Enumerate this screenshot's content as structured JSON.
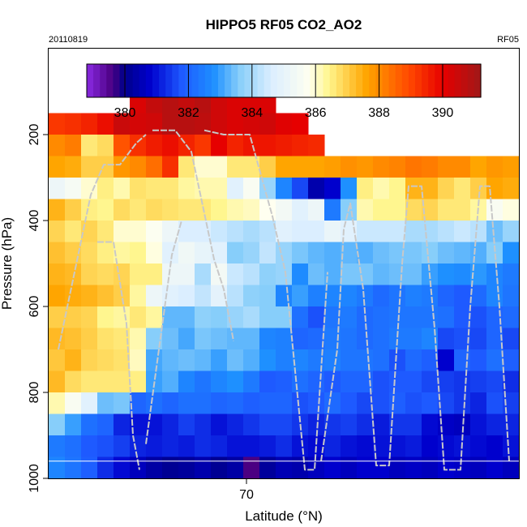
{
  "header": {
    "title": "HIPPO5 RF05 CO2_AO2",
    "date": "20110819",
    "flight": "RF05"
  },
  "chart_data": {
    "type": "heatmap",
    "title": "HIPPO5 RF05 CO2_AO2",
    "xlabel": "Latitude (°N)",
    "ylabel": "Pressure (hPa)",
    "x_ticks": [
      70
    ],
    "y_ticks": [
      200,
      400,
      600,
      800,
      1000
    ],
    "x_tick_labels": [
      "70"
    ],
    "y_tick_labels": [
      "200",
      "400",
      "600",
      "800",
      "1000"
    ],
    "xlim": [
      63.9,
      78.4
    ],
    "ylim": [
      1000,
      0
    ],
    "y_reversed": true,
    "grid": false,
    "colorbar": {
      "placement": "top-inset",
      "range": [
        378.8,
        391.2
      ],
      "ticks": [
        380,
        382,
        384,
        386,
        388,
        390
      ],
      "tick_labels": [
        "380",
        "382",
        "384",
        "386",
        "388",
        "390"
      ],
      "stops": [
        {
          "v": 378.8,
          "c": "#8a2be2"
        },
        {
          "v": 379.6,
          "c": "#4b0082"
        },
        {
          "v": 380.0,
          "c": "#00008b"
        },
        {
          "v": 380.8,
          "c": "#0000cd"
        },
        {
          "v": 381.8,
          "c": "#1e5aff"
        },
        {
          "v": 382.8,
          "c": "#1e90ff"
        },
        {
          "v": 383.6,
          "c": "#87cefa"
        },
        {
          "v": 384.6,
          "c": "#dbeeff"
        },
        {
          "v": 385.8,
          "c": "#fffff0"
        },
        {
          "v": 386.4,
          "c": "#fff68f"
        },
        {
          "v": 387.6,
          "c": "#ffa500"
        },
        {
          "v": 389.0,
          "c": "#ff4500"
        },
        {
          "v": 390.0,
          "c": "#e60000"
        },
        {
          "v": 391.2,
          "c": "#a01818"
        }
      ]
    },
    "lat_bins": [
      63.9,
      64.4,
      64.9,
      65.4,
      65.9,
      66.4,
      66.9,
      67.4,
      67.9,
      68.4,
      68.9,
      69.4,
      69.9,
      70.4,
      70.9,
      71.4,
      71.9,
      72.4,
      72.9,
      73.4,
      73.9,
      74.4,
      74.9,
      75.4,
      75.9,
      76.4,
      76.9,
      77.4,
      77.9,
      78.4
    ],
    "pressure_bins": [
      100,
      150,
      200,
      250,
      300,
      350,
      400,
      450,
      500,
      550,
      600,
      650,
      700,
      750,
      800,
      850,
      900,
      950,
      1000
    ],
    "co2_ppm": [
      [
        null,
        null,
        null,
        null,
        null,
        390.2,
        390.6,
        390.8,
        390.6,
        390.8,
        390.4,
        390.2,
        390.2,
        390.2,
        null,
        null,
        null,
        null,
        null,
        null,
        null,
        null,
        null,
        null,
        null,
        null,
        null,
        null,
        null
      ],
      [
        389.2,
        389.3,
        389.5,
        389.8,
        390.5,
        390.3,
        390.4,
        390.8,
        390.8,
        390.7,
        390.4,
        390.2,
        390.3,
        390.4,
        390.1,
        390.0,
        null,
        null,
        null,
        null,
        null,
        null,
        null,
        null,
        null,
        null,
        null,
        null,
        null
      ],
      [
        388.0,
        388.2,
        386.6,
        386.8,
        388.8,
        389.3,
        389.6,
        389.8,
        389.5,
        389.2,
        390.0,
        389.5,
        389.7,
        389.7,
        389.6,
        389.5,
        389.4,
        null,
        null,
        null,
        null,
        null,
        null,
        null,
        null,
        null,
        null,
        null,
        null
      ],
      [
        387.6,
        387.5,
        387.0,
        387.0,
        387.8,
        388.0,
        388.4,
        389.3,
        386.6,
        386.0,
        386.0,
        386.6,
        386.6,
        387.0,
        387.6,
        387.6,
        387.6,
        387.7,
        387.9,
        387.8,
        388.0,
        388.1,
        388.3,
        388.2,
        388.0,
        388.0,
        387.6,
        387.8,
        387.7
      ],
      [
        385.2,
        385.5,
        386.0,
        386.5,
        386.2,
        386.7,
        386.6,
        386.6,
        386.3,
        386.2,
        386.2,
        384.8,
        385.6,
        383.8,
        382.6,
        381.6,
        380.4,
        380.8,
        382.8,
        386.5,
        386.2,
        386.4,
        387.4,
        387.4,
        386.9,
        386.6,
        387.0,
        387.6,
        387.5
      ],
      [
        387.4,
        387.0,
        386.5,
        386.4,
        386.8,
        386.6,
        386.8,
        386.7,
        386.6,
        386.6,
        386.4,
        386.2,
        386.1,
        385.8,
        385.4,
        384.8,
        385.2,
        382.4,
        383.6,
        386.2,
        386.4,
        386.4,
        386.8,
        386.9,
        386.6,
        386.6,
        386.3,
        385.6,
        385.9
      ],
      [
        386.9,
        386.6,
        386.9,
        386.6,
        386.0,
        386.0,
        385.7,
        385.2,
        384.6,
        384.6,
        384.4,
        384.2,
        384.0,
        384.2,
        384.8,
        384.6,
        384.6,
        385.1,
        384.8,
        384.4,
        384.4,
        384.4,
        384.0,
        384.0,
        384.2,
        384.4,
        384.2,
        383.4,
        383.8
      ],
      [
        387.2,
        387.0,
        386.8,
        386.5,
        386.3,
        386.4,
        385.9,
        384.8,
        385.3,
        385.0,
        384.8,
        383.6,
        383.8,
        384.3,
        383.8,
        383.5,
        383.3,
        383.2,
        383.3,
        383.2,
        383.4,
        383.5,
        383.5,
        383.6,
        383.4,
        383.3,
        383.2,
        383.6,
        382.8
      ],
      [
        387.4,
        387.3,
        386.9,
        386.8,
        386.9,
        386.5,
        386.5,
        385.2,
        385.2,
        384.0,
        385.4,
        384.4,
        384.2,
        383.7,
        383.8,
        382.7,
        383.4,
        383.2,
        383.5,
        383.5,
        383.3,
        383.4,
        383.4,
        383.0,
        382.8,
        382.7,
        382.9,
        382.6,
        382.4
      ],
      [
        387.6,
        387.5,
        387.4,
        387.2,
        387.0,
        386.3,
        385.2,
        384.8,
        384.6,
        384.3,
        384.9,
        384.2,
        383.7,
        383.6,
        382.6,
        383.0,
        382.5,
        382.6,
        382.6,
        382.4,
        382.1,
        382.3,
        382.5,
        382.4,
        382.0,
        381.8,
        382.1,
        382.6,
        382.3
      ],
      [
        387.0,
        387.0,
        386.9,
        386.4,
        386.3,
        386.6,
        386.3,
        383.3,
        383.3,
        383.7,
        383.6,
        383.8,
        384.0,
        383.6,
        383.6,
        382.2,
        381.7,
        382.3,
        382.4,
        382.1,
        382.2,
        382.3,
        382.3,
        382.3,
        382.2,
        381.8,
        381.7,
        382.0,
        382.1
      ],
      [
        387.3,
        387.2,
        387.0,
        386.7,
        386.6,
        386.2,
        383.6,
        383.4,
        383.1,
        383.5,
        383.4,
        383.3,
        383.3,
        382.6,
        382.5,
        382.0,
        382.1,
        382.4,
        382.3,
        382.1,
        382.2,
        382.4,
        382.4,
        382.6,
        381.6,
        381.7,
        381.6,
        382.0,
        381.6
      ],
      [
        387.1,
        387.4,
        386.9,
        386.8,
        386.7,
        386.1,
        383.1,
        383.3,
        383.4,
        383.3,
        383.0,
        383.4,
        383.2,
        382.8,
        382.5,
        382.6,
        382.4,
        382.5,
        382.3,
        382.3,
        382.2,
        381.7,
        382.1,
        381.9,
        380.8,
        382.0,
        381.8,
        382.2,
        381.9
      ],
      [
        387.3,
        386.8,
        386.6,
        386.6,
        386.6,
        386.5,
        383.0,
        383.2,
        382.6,
        382.3,
        382.6,
        382.8,
        382.4,
        381.8,
        381.9,
        382.2,
        382.0,
        381.8,
        382.0,
        382.0,
        381.7,
        381.8,
        381.8,
        381.6,
        381.5,
        381.4,
        381.5,
        381.6,
        381.3
      ],
      [
        386.2,
        385.6,
        384.8,
        383.4,
        383.5,
        382.0,
        382.2,
        382.0,
        382.2,
        382.2,
        382.0,
        382.1,
        381.9,
        382.0,
        382.0,
        381.7,
        381.8,
        382.1,
        381.8,
        381.6,
        381.7,
        381.9,
        381.7,
        381.8,
        381.6,
        381.4,
        381.2,
        381.7,
        381.5
      ],
      [
        383.6,
        383.0,
        382.2,
        382.0,
        381.2,
        381.0,
        381.0,
        381.2,
        381.5,
        381.3,
        381.0,
        381.2,
        381.4,
        381.6,
        381.6,
        381.4,
        381.2,
        381.4,
        381.5,
        381.3,
        381.1,
        381.4,
        381.4,
        380.9,
        380.7,
        380.6,
        381.0,
        381.2,
        381.2
      ],
      [
        382.4,
        382.2,
        381.8,
        381.7,
        381.5,
        381.2,
        381.1,
        381.2,
        381.1,
        381.3,
        381.2,
        381.0,
        381.0,
        381.1,
        381.3,
        381.0,
        380.9,
        381.2,
        381.0,
        380.9,
        381.0,
        381.0,
        381.1,
        380.8,
        380.9,
        381.0,
        380.9,
        380.8,
        381.0
      ],
      [
        382.6,
        382.3,
        381.9,
        381.3,
        380.9,
        380.6,
        380.3,
        380.1,
        380.2,
        380.4,
        380.1,
        380.3,
        379.6,
        380.2,
        380.5,
        380.4,
        380.6,
        380.8,
        380.6,
        380.8,
        380.8,
        380.6,
        380.7,
        380.6,
        380.8,
        380.7,
        380.6,
        380.8,
        380.6
      ]
    ],
    "profile_traces": [
      [
        [
          64.2,
          700
        ],
        [
          64.7,
          520
        ],
        [
          65.2,
          340
        ],
        [
          65.6,
          270
        ],
        [
          66.1,
          270
        ],
        [
          66.6,
          220
        ],
        [
          66.9,
          200
        ]
      ],
      [
        [
          65.4,
          450
        ],
        [
          65.9,
          450
        ],
        [
          66.3,
          640
        ],
        [
          66.5,
          900
        ],
        [
          66.7,
          980
        ]
      ],
      [
        [
          67.1,
          190
        ],
        [
          67.8,
          190
        ],
        [
          68.3,
          240
        ],
        [
          69.0,
          490
        ],
        [
          69.3,
          560
        ],
        [
          69.6,
          680
        ]
      ],
      [
        [
          68.7,
          190
        ],
        [
          69.3,
          200
        ],
        [
          70.1,
          200
        ],
        [
          70.8,
          390
        ],
        [
          71.2,
          520
        ],
        [
          71.8,
          980
        ],
        [
          72.1,
          980
        ],
        [
          72.5,
          520
        ]
      ],
      [
        [
          66.9,
          920
        ],
        [
          67.3,
          700
        ],
        [
          67.7,
          480
        ],
        [
          68.0,
          400
        ]
      ],
      [
        [
          72.3,
          960
        ],
        [
          72.8,
          700
        ],
        [
          73.0,
          420
        ],
        [
          73.2,
          360
        ],
        [
          73.6,
          560
        ],
        [
          74.0,
          970
        ],
        [
          74.4,
          970
        ],
        [
          74.8,
          500
        ],
        [
          75.0,
          320
        ],
        [
          75.4,
          320
        ],
        [
          75.8,
          650
        ],
        [
          76.1,
          980
        ],
        [
          76.6,
          980
        ],
        [
          76.9,
          600
        ],
        [
          77.2,
          320
        ],
        [
          77.5,
          320
        ],
        [
          77.8,
          600
        ],
        [
          78.1,
          960
        ]
      ]
    ],
    "surface_line_hpa": 960
  }
}
